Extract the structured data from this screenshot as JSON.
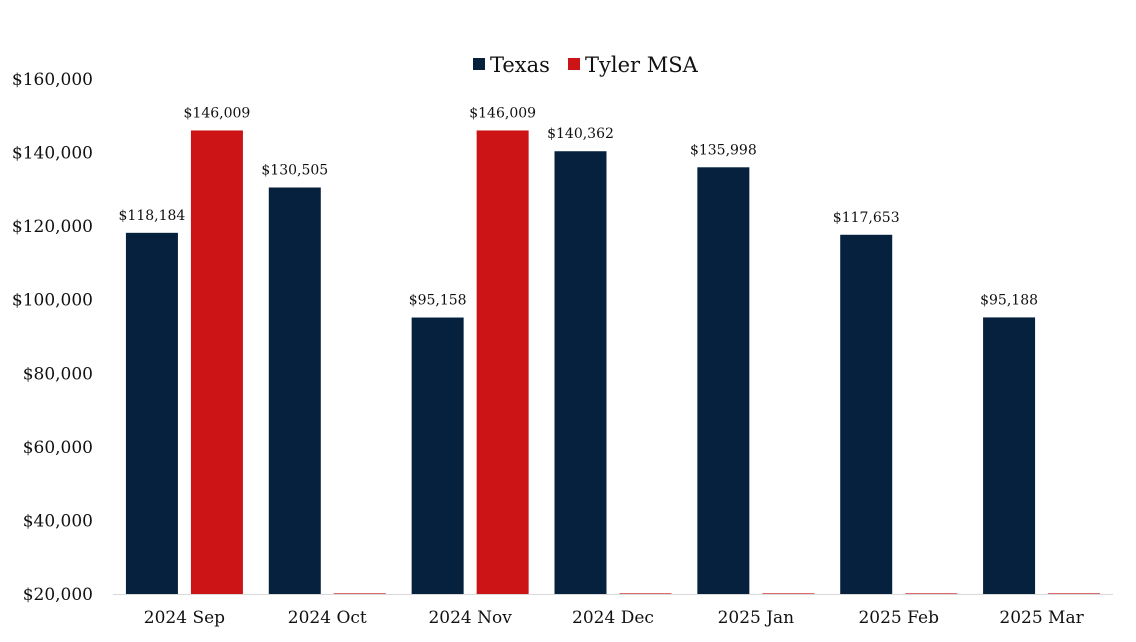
{
  "chart_data": {
    "type": "bar",
    "title": "",
    "xlabel": "",
    "ylabel": "",
    "ylim": [
      20000,
      160000
    ],
    "yticks": [
      20000,
      40000,
      60000,
      80000,
      100000,
      120000,
      140000,
      160000
    ],
    "ytick_labels": [
      "$20,000",
      "$40,000",
      "$60,000",
      "$80,000",
      "$100,000",
      "$120,000",
      "$140,000",
      "$160,000"
    ],
    "grid": false,
    "legend_position": "top-center",
    "categories": [
      "2024 Sep",
      "2024 Oct",
      "2024 Nov",
      "2024 Dec",
      "2025 Jan",
      "2025 Feb",
      "2025 Mar"
    ],
    "series": [
      {
        "name": "Texas",
        "color": "#06213d",
        "values": [
          118184,
          130505,
          95158,
          140362,
          135998,
          117653,
          95188
        ],
        "labels": [
          "$118,184",
          "$130,505",
          "$95,158",
          "$140,362",
          "$135,998",
          "$117,653",
          "$95,188"
        ]
      },
      {
        "name": "Tyler MSA",
        "color": "#cc1416",
        "values": [
          146009,
          null,
          146009,
          null,
          null,
          null,
          null
        ],
        "labels": [
          "$146,009",
          null,
          "$146,009",
          null,
          null,
          null,
          null
        ]
      }
    ]
  }
}
